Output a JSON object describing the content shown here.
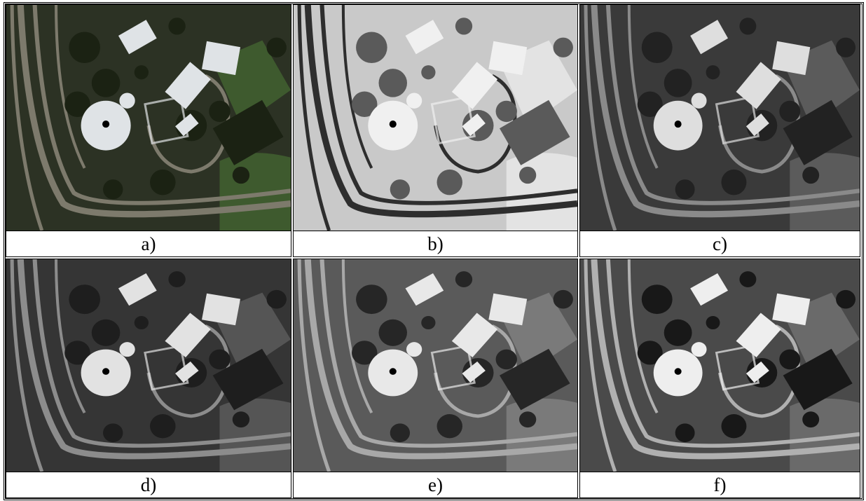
{
  "figure": {
    "panels": [
      {
        "label": "a)"
      },
      {
        "label": "b)"
      },
      {
        "label": "c)"
      },
      {
        "label": "d)"
      },
      {
        "label": "e)"
      },
      {
        "label": "f)"
      }
    ]
  }
}
